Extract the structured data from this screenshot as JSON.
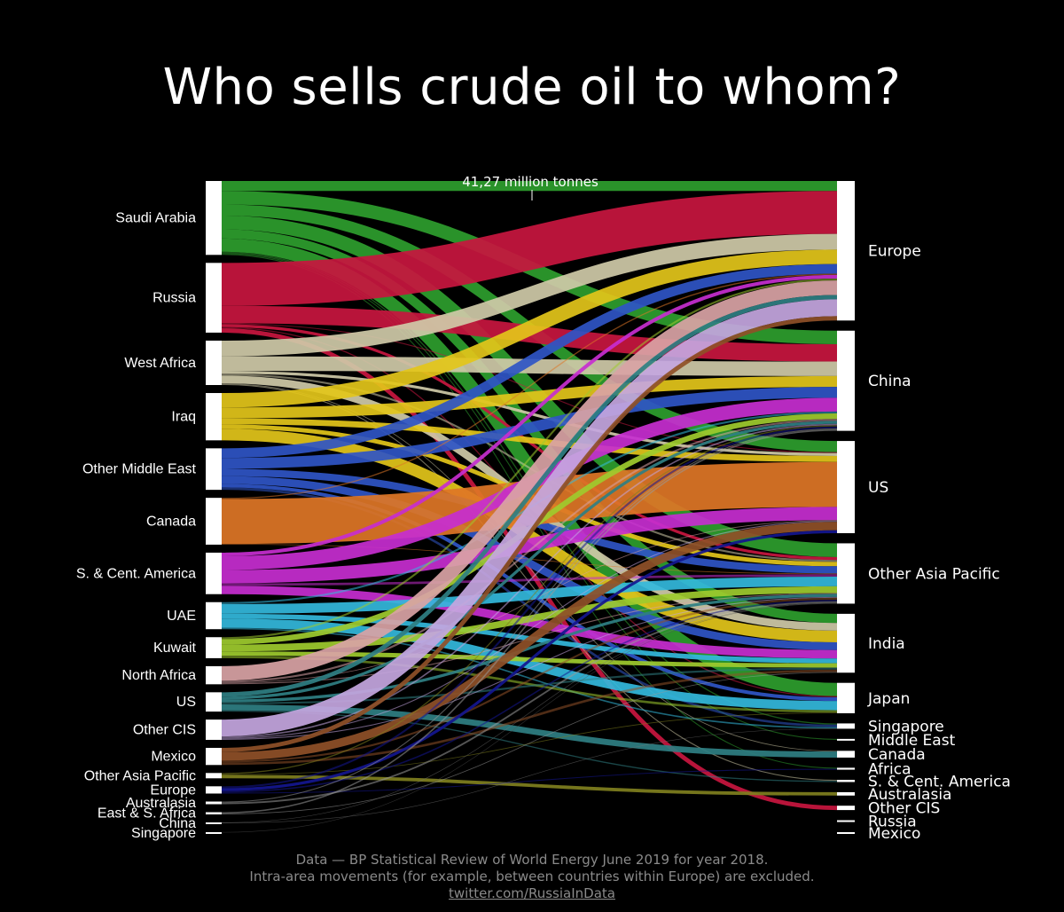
{
  "title": "Who sells crude oil to whom?",
  "annotation": "41,27 million tonnes",
  "footer": {
    "line1": "Data  — BP Statistical Review of World Energy June 2019 for year 2018.",
    "line2": "Intra-area movements (for example, between countries within Europe) are excluded.",
    "link": "twitter.com/RussiaInData"
  },
  "sources": [
    {
      "name": "Saudi Arabia",
      "color": "#2e9e2e"
    },
    {
      "name": "Russia",
      "color": "#c8163f"
    },
    {
      "name": "West Africa",
      "color": "#cfcaa8"
    },
    {
      "name": "Iraq",
      "color": "#e3c51a"
    },
    {
      "name": "Other Middle East",
      "color": "#2f55c6"
    },
    {
      "name": "Canada",
      "color": "#de7626"
    },
    {
      "name": "S. & Cent. America",
      "color": "#c72ed0"
    },
    {
      "name": "UAE",
      "color": "#33b9dc"
    },
    {
      "name": "Kuwait",
      "color": "#9ecb2e"
    },
    {
      "name": "North Africa",
      "color": "#d9a3a5"
    },
    {
      "name": "US",
      "color": "#2f7f83"
    },
    {
      "name": "Other CIS",
      "color": "#c4a6e0"
    },
    {
      "name": "Mexico",
      "color": "#8f5028"
    },
    {
      "name": "Other Asia Pacific",
      "color": "#7f7f1e"
    },
    {
      "name": "Europe",
      "color": "#14168f"
    },
    {
      "name": "Australasia",
      "color": "#999999"
    },
    {
      "name": "East & S. Africa",
      "color": "#999999"
    },
    {
      "name": "China",
      "color": "#777777"
    },
    {
      "name": "Singapore",
      "color": "#555555"
    }
  ],
  "destinations": [
    {
      "name": "Europe"
    },
    {
      "name": "China"
    },
    {
      "name": "US"
    },
    {
      "name": "Other Asia Pacific"
    },
    {
      "name": "India"
    },
    {
      "name": "Japan"
    },
    {
      "name": "Singapore"
    },
    {
      "name": "Middle East"
    },
    {
      "name": "Canada"
    },
    {
      "name": "Africa"
    },
    {
      "name": "S. & Cent. America"
    },
    {
      "name": "Australasia"
    },
    {
      "name": "Other CIS"
    },
    {
      "name": "Russia"
    },
    {
      "name": "Mexico"
    }
  ],
  "flows": [
    [
      "Saudi Arabia",
      "Europe",
      41.27
    ],
    [
      "Saudi Arabia",
      "China",
      56
    ],
    [
      "Saudi Arabia",
      "US",
      46
    ],
    [
      "Saudi Arabia",
      "Other Asia Pacific",
      57
    ],
    [
      "Saudi Arabia",
      "India",
      38
    ],
    [
      "Saudi Arabia",
      "Japan",
      55
    ],
    [
      "Saudi Arabia",
      "Singapore",
      5
    ],
    [
      "Saudi Arabia",
      "Middle East",
      4
    ],
    [
      "Saudi Arabia",
      "Africa",
      4
    ],
    [
      "Russia",
      "Europe",
      178
    ],
    [
      "Russia",
      "China",
      72
    ],
    [
      "Russia",
      "Other Asia Pacific",
      12
    ],
    [
      "Russia",
      "Japan",
      5
    ],
    [
      "Russia",
      "Other CIS",
      18
    ],
    [
      "Russia",
      "US",
      4
    ],
    [
      "West Africa",
      "Europe",
      65
    ],
    [
      "West Africa",
      "China",
      60
    ],
    [
      "West Africa",
      "India",
      32
    ],
    [
      "West Africa",
      "US",
      12
    ],
    [
      "West Africa",
      "Other Asia Pacific",
      8
    ],
    [
      "West Africa",
      "S. & Cent. America",
      4
    ],
    [
      "West Africa",
      "Canada",
      3
    ],
    [
      "Iraq",
      "Europe",
      60
    ],
    [
      "Iraq",
      "China",
      45
    ],
    [
      "Iraq",
      "India",
      48
    ],
    [
      "Iraq",
      "US",
      25
    ],
    [
      "Iraq",
      "Other Asia Pacific",
      18
    ],
    [
      "Other Middle East",
      "Europe",
      40
    ],
    [
      "Other Middle East",
      "China",
      45
    ],
    [
      "Other Middle East",
      "Other Asia Pacific",
      30
    ],
    [
      "Other Middle East",
      "India",
      32
    ],
    [
      "Other Middle East",
      "Japan",
      15
    ],
    [
      "Other Middle East",
      "Singapore",
      10
    ],
    [
      "Canada",
      "US",
      186
    ],
    [
      "Canada",
      "Europe",
      5
    ],
    [
      "Canada",
      "Other Asia Pacific",
      3
    ],
    [
      "S. & Cent. America",
      "US",
      55
    ],
    [
      "S. & Cent. America",
      "China",
      57
    ],
    [
      "S. & Cent. America",
      "India",
      35
    ],
    [
      "S. & Cent. America",
      "Europe",
      15
    ],
    [
      "S. & Cent. America",
      "Other Asia Pacific",
      10
    ],
    [
      "UAE",
      "Japan",
      38
    ],
    [
      "UAE",
      "Other Asia Pacific",
      40
    ],
    [
      "UAE",
      "India",
      20
    ],
    [
      "UAE",
      "China",
      8
    ],
    [
      "UAE",
      "Singapore",
      6
    ],
    [
      "Kuwait",
      "Other Asia Pacific",
      28
    ],
    [
      "Kuwait",
      "China",
      23
    ],
    [
      "Kuwait",
      "India",
      18
    ],
    [
      "Kuwait",
      "Japan",
      10
    ],
    [
      "Kuwait",
      "Europe",
      8
    ],
    [
      "North Africa",
      "Europe",
      60
    ],
    [
      "North Africa",
      "China",
      8
    ],
    [
      "North Africa",
      "Other Asia Pacific",
      4
    ],
    [
      "North Africa",
      "US",
      3
    ],
    [
      "US",
      "Canada",
      25
    ],
    [
      "US",
      "Europe",
      18
    ],
    [
      "US",
      "China",
      12
    ],
    [
      "US",
      "Other Asia Pacific",
      12
    ],
    [
      "US",
      "India",
      8
    ],
    [
      "US",
      "S. & Cent. America",
      5
    ],
    [
      "Other CIS",
      "Europe",
      70
    ],
    [
      "Other CIS",
      "China",
      6
    ],
    [
      "Other CIS",
      "US",
      4
    ],
    [
      "Other CIS",
      "Other Asia Pacific",
      4
    ],
    [
      "Mexico",
      "US",
      35
    ],
    [
      "Mexico",
      "Europe",
      18
    ],
    [
      "Mexico",
      "India",
      10
    ],
    [
      "Mexico",
      "Other Asia Pacific",
      8
    ],
    [
      "Other Asia Pacific",
      "Australasia",
      14
    ],
    [
      "Other Asia Pacific",
      "China",
      5
    ],
    [
      "Other Asia Pacific",
      "Japan",
      3
    ],
    [
      "Europe",
      "China",
      8
    ],
    [
      "Europe",
      "US",
      12
    ],
    [
      "Europe",
      "Other Asia Pacific",
      6
    ],
    [
      "Europe",
      "Africa",
      4
    ],
    [
      "Australasia",
      "Other Asia Pacific",
      7
    ],
    [
      "Australasia",
      "China",
      4
    ],
    [
      "East & S. Africa",
      "China",
      6
    ],
    [
      "East & S. Africa",
      "India",
      3
    ],
    [
      "China",
      "Other Asia Pacific",
      2
    ],
    [
      "China",
      "Singapore",
      1
    ],
    [
      "Singapore",
      "Other Asia Pacific",
      1
    ]
  ]
}
